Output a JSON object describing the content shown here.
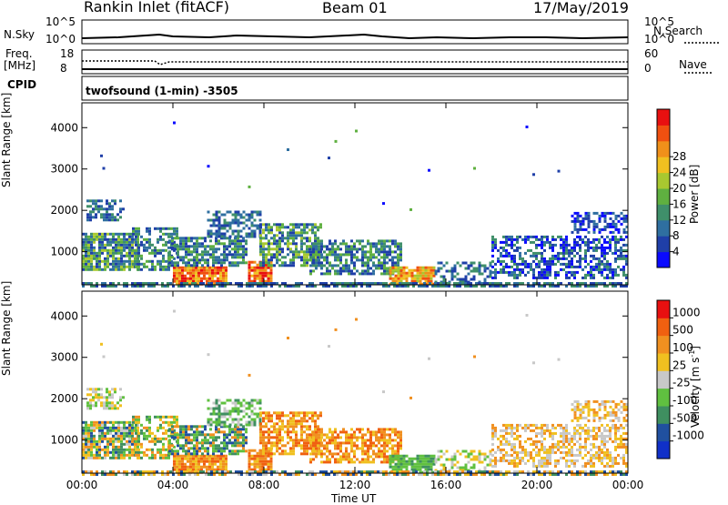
{
  "header": {
    "station": "Rankin Inlet (fitACF)",
    "beam": "Beam 01",
    "date": "17/May/2019"
  },
  "noise_panel": {
    "left_label": "N.Sky",
    "right_label": "N.Search",
    "left_ticks": [
      "10^5",
      "10^0"
    ],
    "right_ticks": [
      "10^5",
      "10^0"
    ]
  },
  "freq_panel": {
    "left_label": "Freq.",
    "left_unit": "[MHz]",
    "right_label": "Nave",
    "left_ticks": [
      "18",
      "8"
    ],
    "right_ticks": [
      "60",
      "0"
    ]
  },
  "cpid": {
    "label": "CPID",
    "text": "twofsound (1-min) -3505"
  },
  "chart_data": [
    {
      "type": "heatmap",
      "name": "power-panel",
      "ylabel": "Slant Range [km]",
      "xlabel": "",
      "y_ticks": [
        "1000",
        "2000",
        "3000",
        "4000"
      ],
      "y_tick_values": [
        1000,
        2000,
        3000,
        4000
      ],
      "ylim": [
        200,
        4600
      ],
      "xlim": [
        0,
        24
      ],
      "colorbar": {
        "label": "Power [dB]",
        "ticks": [
          "4",
          "8",
          "12",
          "16",
          "20",
          "24",
          "28"
        ],
        "colors": [
          "#0a0aff",
          "#1f3fa8",
          "#2f6fa0",
          "#3f8f6a",
          "#5fb040",
          "#a8c830",
          "#f0c020",
          "#f0901a",
          "#f05010",
          "#e81010"
        ]
      }
    },
    {
      "type": "heatmap",
      "name": "velocity-panel",
      "ylabel": "Slant Range [km]",
      "xlabel": "Time UT",
      "y_ticks": [
        "1000",
        "2000",
        "3000",
        "4000"
      ],
      "y_tick_values": [
        1000,
        2000,
        3000,
        4000
      ],
      "x_ticks": [
        "00:00",
        "04:00",
        "08:00",
        "12:00",
        "16:00",
        "20:00",
        "00:00"
      ],
      "x_tick_values": [
        0,
        4,
        8,
        12,
        16,
        20,
        24
      ],
      "ylim": [
        200,
        4600
      ],
      "xlim": [
        0,
        24
      ],
      "colorbar": {
        "label": "Velocity [m s",
        "label_sup": "-1",
        "label_end": "]",
        "ticks": [
          "1000",
          "500",
          "100",
          "25",
          "-25",
          "-100",
          "-500",
          "-1000"
        ],
        "colors": [
          "#1030c8",
          "#2050a0",
          "#3f8f60",
          "#60c040",
          "#c8c8c8",
          "#f0c020",
          "#f09020",
          "#f06010",
          "#e81010"
        ]
      }
    }
  ]
}
